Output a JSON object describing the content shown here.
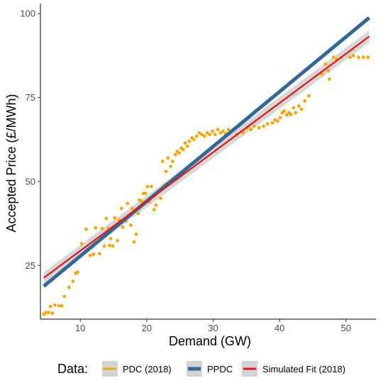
{
  "chart_data": {
    "type": "scatter",
    "xlabel": "Demand (GW)",
    "ylabel": "Accepted Price (£/MWh)",
    "xlim": [
      4,
      54.5
    ],
    "ylim": [
      9,
      103
    ],
    "x_ticks": [
      10,
      20,
      30,
      40,
      50
    ],
    "y_ticks": [
      25,
      50,
      75,
      100
    ],
    "grid": false,
    "legend": {
      "position": "bottom",
      "title": "Data:",
      "entries": [
        {
          "label": "PDC (2018)",
          "color": "#FFA500"
        },
        {
          "label": "PPDC",
          "color": "#336699"
        },
        {
          "label": "Simulated Fit (2018)",
          "color": "#EE1111"
        }
      ]
    },
    "series": [
      {
        "name": "PDC (2018)",
        "kind": "points",
        "color": "#FFA500",
        "points": [
          [
            4.5,
            10.5
          ],
          [
            4.8,
            11
          ],
          [
            5.2,
            11
          ],
          [
            5.8,
            10.8
          ],
          [
            5.5,
            12.8
          ],
          [
            6.2,
            13.2
          ],
          [
            6.8,
            13
          ],
          [
            7.2,
            13
          ],
          [
            7.6,
            15.8
          ],
          [
            8.3,
            18.5
          ],
          [
            8.9,
            20.3
          ],
          [
            9.3,
            22.7
          ],
          [
            9.6,
            23
          ],
          [
            10.2,
            31.5
          ],
          [
            10.9,
            35.8
          ],
          [
            11.5,
            28
          ],
          [
            12,
            28.3
          ],
          [
            12.3,
            36.2
          ],
          [
            12.9,
            28.5
          ],
          [
            13.1,
            33.5
          ],
          [
            13.3,
            36
          ],
          [
            13.6,
            30.8
          ],
          [
            13.9,
            39
          ],
          [
            14.2,
            36
          ],
          [
            14.4,
            31
          ],
          [
            14.6,
            33
          ],
          [
            14.9,
            30.8
          ],
          [
            15.2,
            39.2
          ],
          [
            15.6,
            32.4
          ],
          [
            15.9,
            38.5
          ],
          [
            16.2,
            42
          ],
          [
            16.4,
            36.4
          ],
          [
            16.9,
            38.2
          ],
          [
            17.1,
            43.5
          ],
          [
            17.3,
            40
          ],
          [
            17.6,
            37
          ],
          [
            17.8,
            42
          ],
          [
            18.1,
            32
          ],
          [
            18.4,
            34.3
          ],
          [
            18.7,
            40.5
          ],
          [
            18.9,
            44.5
          ],
          [
            19.2,
            44
          ],
          [
            19.5,
            46.5
          ],
          [
            19.8,
            46.5
          ],
          [
            20.1,
            48.5
          ],
          [
            20.4,
            44
          ],
          [
            20.7,
            48.5
          ],
          [
            21.1,
            41.6
          ],
          [
            21.4,
            43
          ],
          [
            21.8,
            47
          ],
          [
            22.1,
            45
          ],
          [
            22.4,
            56
          ],
          [
            22.7,
            49
          ],
          [
            22.9,
            53
          ],
          [
            23.2,
            57
          ],
          [
            23.6,
            54.5
          ],
          [
            23.9,
            56
          ],
          [
            24.3,
            58
          ],
          [
            24.6,
            59
          ],
          [
            24.9,
            58.5
          ],
          [
            25.2,
            60
          ],
          [
            25.5,
            59.5
          ],
          [
            25.8,
            61.5
          ],
          [
            26.1,
            60.5
          ],
          [
            26.4,
            62
          ],
          [
            26.8,
            63
          ],
          [
            27.1,
            62.5
          ],
          [
            27.5,
            63.5
          ],
          [
            27.9,
            64.5
          ],
          [
            28.3,
            64
          ],
          [
            28.7,
            63.5
          ],
          [
            29.1,
            64.5
          ],
          [
            29.5,
            64
          ],
          [
            29.9,
            65
          ],
          [
            30.3,
            64
          ],
          [
            30.7,
            65.5
          ],
          [
            31.1,
            64.5
          ],
          [
            31.5,
            65
          ],
          [
            31.9,
            64.2
          ],
          [
            32.3,
            65.5
          ],
          [
            33.5,
            64
          ],
          [
            34.5,
            64.5
          ],
          [
            35.1,
            66
          ],
          [
            35.7,
            65.5
          ],
          [
            36.2,
            66.5
          ],
          [
            36.9,
            66
          ],
          [
            37.6,
            66.5
          ],
          [
            38.2,
            67.2
          ],
          [
            38.9,
            67.5
          ],
          [
            39.3,
            68.3
          ],
          [
            39.7,
            68
          ],
          [
            40.1,
            69
          ],
          [
            40.4,
            70.5
          ],
          [
            40.7,
            71
          ],
          [
            41.1,
            69.8
          ],
          [
            41.4,
            70.5
          ],
          [
            41.7,
            70
          ],
          [
            42.1,
            72
          ],
          [
            42.4,
            70.5
          ],
          [
            42.9,
            72.5
          ],
          [
            43.3,
            71.5
          ],
          [
            43.8,
            74
          ],
          [
            44.4,
            75.5
          ],
          [
            46.4,
            82
          ],
          [
            46.9,
            85
          ],
          [
            47.3,
            83
          ],
          [
            47.5,
            80.5
          ],
          [
            48.1,
            87
          ],
          [
            48.6,
            86.5
          ],
          [
            49.3,
            87
          ],
          [
            50.6,
            87
          ],
          [
            51.1,
            87.5
          ],
          [
            51.9,
            87
          ],
          [
            52.6,
            87
          ],
          [
            53.3,
            87
          ]
        ]
      },
      {
        "name": "PPDC",
        "kind": "line",
        "color": "#336699",
        "x": [
          4.5,
          53.5
        ],
        "y": [
          18.8,
          98.8
        ]
      },
      {
        "name": "Simulated Fit (2018)",
        "kind": "line",
        "color": "#EE1111",
        "ribbon_color": "#D3D3D3",
        "x": [
          4.5,
          53.5
        ],
        "y": [
          21.3,
          93.2
        ],
        "ribbon_lower": [
          19.6,
          91.4
        ],
        "ribbon_upper": [
          23.0,
          95.0
        ]
      }
    ]
  }
}
